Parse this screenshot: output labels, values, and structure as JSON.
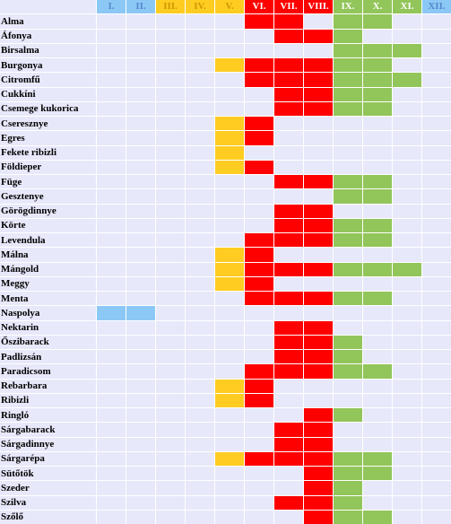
{
  "colors": {
    "row_bg": "#e8e8fb",
    "grid_line": "#ffffff",
    "winter": "#8cc8f5",
    "spring": "#ffcc22",
    "summer": "#ff0000",
    "autumn": "#92c55a",
    "winter_text": "#5588cc",
    "spring_text": "#cc9900",
    "summer_text": "#ffffff",
    "autumn_text": "#ffffff"
  },
  "months": [
    {
      "label": "I.",
      "season": "winter"
    },
    {
      "label": "II.",
      "season": "winter"
    },
    {
      "label": "III.",
      "season": "spring"
    },
    {
      "label": "IV.",
      "season": "spring"
    },
    {
      "label": "V.",
      "season": "spring"
    },
    {
      "label": "VI.",
      "season": "summer"
    },
    {
      "label": "VII.",
      "season": "summer"
    },
    {
      "label": "VIII.",
      "season": "summer"
    },
    {
      "label": "IX.",
      "season": "autumn"
    },
    {
      "label": "X.",
      "season": "autumn"
    },
    {
      "label": "XI.",
      "season": "autumn"
    },
    {
      "label": "XII.",
      "season": "winter"
    }
  ],
  "produce": [
    {
      "name": "Alma",
      "months": [
        6,
        7,
        9,
        10
      ]
    },
    {
      "name": "Áfonya",
      "months": [
        7,
        8,
        9
      ]
    },
    {
      "name": "Birsalma",
      "months": [
        9,
        10,
        11
      ]
    },
    {
      "name": "Burgonya",
      "months": [
        5,
        6,
        7,
        8,
        9,
        10
      ]
    },
    {
      "name": "Citromfű",
      "months": [
        6,
        7,
        8,
        9,
        10,
        11
      ]
    },
    {
      "name": "Cukkíni",
      "months": [
        7,
        8,
        9,
        10
      ]
    },
    {
      "name": "Csemege kukorica",
      "months": [
        7,
        8,
        9,
        10
      ]
    },
    {
      "name": "Cseresznye",
      "months": [
        5,
        6
      ]
    },
    {
      "name": "Egres",
      "months": [
        5,
        6
      ]
    },
    {
      "name": "Fekete ribizli",
      "months": [
        5
      ]
    },
    {
      "name": "Földieper",
      "months": [
        5,
        6
      ]
    },
    {
      "name": "Füge",
      "months": [
        7,
        8,
        9,
        10
      ]
    },
    {
      "name": "Gesztenye",
      "months": [
        9,
        10
      ]
    },
    {
      "name": "Görögdinnye",
      "months": [
        7,
        8
      ]
    },
    {
      "name": "Körte",
      "months": [
        7,
        8,
        9,
        10
      ]
    },
    {
      "name": "Levendula",
      "months": [
        6,
        7,
        8,
        9,
        10
      ]
    },
    {
      "name": "Málna",
      "months": [
        5,
        6
      ]
    },
    {
      "name": "Mángold",
      "months": [
        5,
        6,
        7,
        8,
        9,
        10,
        11
      ]
    },
    {
      "name": "Meggy",
      "months": [
        5,
        6
      ]
    },
    {
      "name": "Menta",
      "months": [
        6,
        7,
        8,
        9,
        10
      ]
    },
    {
      "name": "Naspolya",
      "months": [
        1,
        2
      ]
    },
    {
      "name": "Nektarin",
      "months": [
        7,
        8
      ]
    },
    {
      "name": "Őszibarack",
      "months": [
        7,
        8,
        9
      ]
    },
    {
      "name": "Padlizsán",
      "months": [
        7,
        8,
        9
      ]
    },
    {
      "name": "Paradicsom",
      "months": [
        6,
        7,
        8,
        9,
        10
      ]
    },
    {
      "name": "Rebarbara",
      "months": [
        5,
        6
      ]
    },
    {
      "name": "Ribizli",
      "months": [
        5,
        6
      ]
    },
    {
      "name": "Ringló",
      "months": [
        8,
        9
      ]
    },
    {
      "name": "Sárgabarack",
      "months": [
        7,
        8
      ]
    },
    {
      "name": "Sárgadinnye",
      "months": [
        7,
        8
      ]
    },
    {
      "name": "Sárgarépa",
      "months": [
        5,
        6,
        7,
        8,
        9,
        10
      ]
    },
    {
      "name": "Sütőtök",
      "months": [
        8,
        9,
        10
      ]
    },
    {
      "name": "Szeder",
      "months": [
        8,
        9
      ]
    },
    {
      "name": "Szilva",
      "months": [
        7,
        8,
        9
      ]
    },
    {
      "name": "Szőlő",
      "months": [
        8,
        9,
        10
      ]
    }
  ]
}
